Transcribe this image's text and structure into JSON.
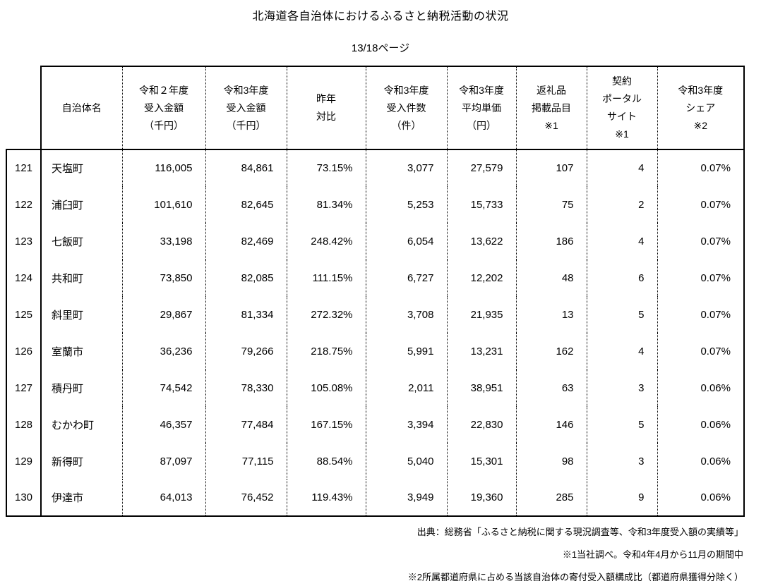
{
  "page": {
    "title": "北海道各自治体におけるふるさと納税活動の状況",
    "page_indicator": "13/18ページ"
  },
  "table": {
    "columns": [
      {
        "key": "index",
        "label_lines": []
      },
      {
        "key": "name",
        "label_lines": [
          "自治体名"
        ]
      },
      {
        "key": "r2_amount",
        "label_lines": [
          "令和２年度",
          "受入金額",
          "（千円）"
        ]
      },
      {
        "key": "r3_amount",
        "label_lines": [
          "令和3年度",
          "受入金額",
          "（千円）"
        ]
      },
      {
        "key": "yoy",
        "label_lines": [
          "昨年",
          "対比"
        ]
      },
      {
        "key": "r3_count",
        "label_lines": [
          "令和3年度",
          "受入件数",
          "（件）"
        ]
      },
      {
        "key": "r3_avg_price",
        "label_lines": [
          "令和3年度",
          "平均単価",
          "（円）"
        ]
      },
      {
        "key": "gift_items",
        "label_lines": [
          "返礼品",
          "掲載品目",
          "※1"
        ]
      },
      {
        "key": "portal_sites",
        "label_lines": [
          "契約",
          "ポータル",
          "サイト",
          "※1"
        ]
      },
      {
        "key": "r3_share",
        "label_lines": [
          "令和3年度",
          "シェア",
          "※2"
        ]
      }
    ],
    "rows": [
      {
        "index": "121",
        "name": "天塩町",
        "r2_amount": "116,005",
        "r3_amount": "84,861",
        "yoy": "73.15%",
        "r3_count": "3,077",
        "r3_avg_price": "27,579",
        "gift_items": "107",
        "portal_sites": "4",
        "r3_share": "0.07%"
      },
      {
        "index": "122",
        "name": "浦臼町",
        "r2_amount": "101,610",
        "r3_amount": "82,645",
        "yoy": "81.34%",
        "r3_count": "5,253",
        "r3_avg_price": "15,733",
        "gift_items": "75",
        "portal_sites": "2",
        "r3_share": "0.07%"
      },
      {
        "index": "123",
        "name": "七飯町",
        "r2_amount": "33,198",
        "r3_amount": "82,469",
        "yoy": "248.42%",
        "r3_count": "6,054",
        "r3_avg_price": "13,622",
        "gift_items": "186",
        "portal_sites": "4",
        "r3_share": "0.07%"
      },
      {
        "index": "124",
        "name": "共和町",
        "r2_amount": "73,850",
        "r3_amount": "82,085",
        "yoy": "111.15%",
        "r3_count": "6,727",
        "r3_avg_price": "12,202",
        "gift_items": "48",
        "portal_sites": "6",
        "r3_share": "0.07%"
      },
      {
        "index": "125",
        "name": "斜里町",
        "r2_amount": "29,867",
        "r3_amount": "81,334",
        "yoy": "272.32%",
        "r3_count": "3,708",
        "r3_avg_price": "21,935",
        "gift_items": "13",
        "portal_sites": "5",
        "r3_share": "0.07%"
      },
      {
        "index": "126",
        "name": "室蘭市",
        "r2_amount": "36,236",
        "r3_amount": "79,266",
        "yoy": "218.75%",
        "r3_count": "5,991",
        "r3_avg_price": "13,231",
        "gift_items": "162",
        "portal_sites": "4",
        "r3_share": "0.07%"
      },
      {
        "index": "127",
        "name": "積丹町",
        "r2_amount": "74,542",
        "r3_amount": "78,330",
        "yoy": "105.08%",
        "r3_count": "2,011",
        "r3_avg_price": "38,951",
        "gift_items": "63",
        "portal_sites": "3",
        "r3_share": "0.06%"
      },
      {
        "index": "128",
        "name": "むかわ町",
        "r2_amount": "46,357",
        "r3_amount": "77,484",
        "yoy": "167.15%",
        "r3_count": "3,394",
        "r3_avg_price": "22,830",
        "gift_items": "146",
        "portal_sites": "5",
        "r3_share": "0.06%"
      },
      {
        "index": "129",
        "name": "新得町",
        "r2_amount": "87,097",
        "r3_amount": "77,115",
        "yoy": "88.54%",
        "r3_count": "5,040",
        "r3_avg_price": "15,301",
        "gift_items": "98",
        "portal_sites": "3",
        "r3_share": "0.06%"
      },
      {
        "index": "130",
        "name": "伊達市",
        "r2_amount": "64,013",
        "r3_amount": "76,452",
        "yoy": "119.43%",
        "r3_count": "3,949",
        "r3_avg_price": "19,360",
        "gift_items": "285",
        "portal_sites": "9",
        "r3_share": "0.06%"
      }
    ]
  },
  "footer": {
    "source": "出典：総務省「ふるさと納税に関する現況調査等、令和3年度受入額の実績等」",
    "note1": "※1当社調べ。令和4年4月から11月の期間中",
    "note2": "※2所属都道府県に占める当該自治体の寄付受入額構成比（都道府県獲得分除く）"
  }
}
